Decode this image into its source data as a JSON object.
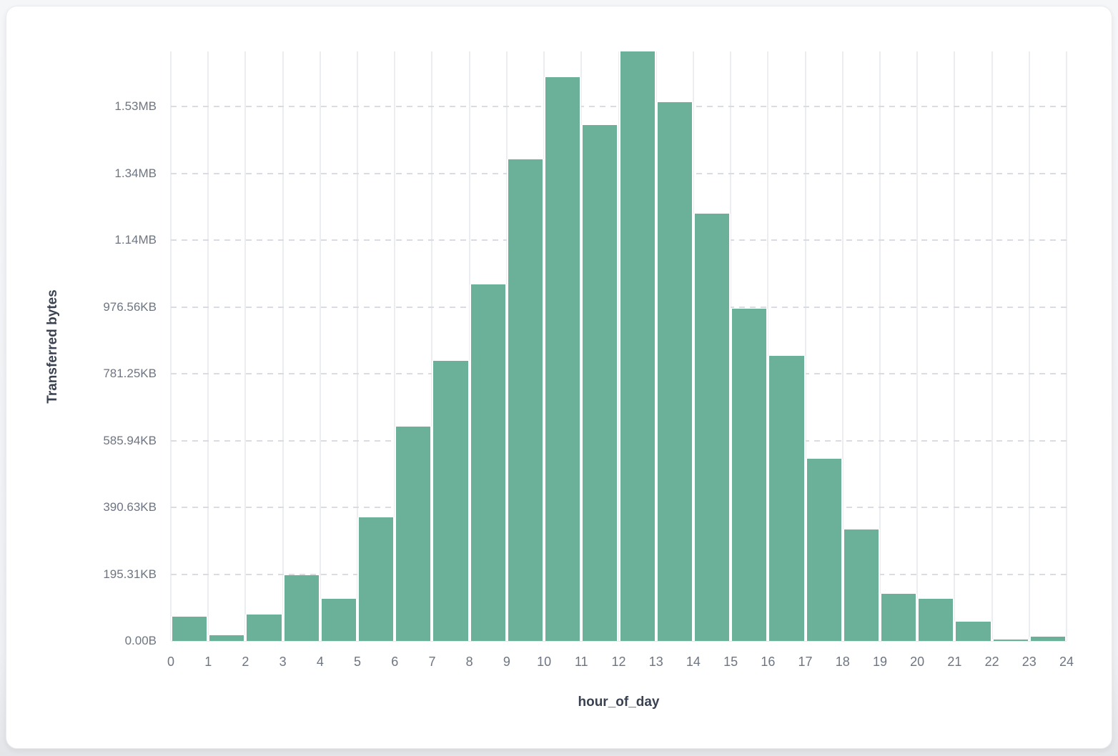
{
  "page": {
    "background_top": "#f5f6f8",
    "background_bottom": "#e3e5e8",
    "card_background": "#ffffff",
    "card_border": "#e9ebef"
  },
  "text_colors": {
    "tick_label": "#6e7582",
    "axis_title": "#3a4150"
  },
  "chart_data": {
    "type": "bar",
    "title": "",
    "xlabel": "hour_of_day",
    "ylabel": "Transferred bytes",
    "bar_color": "#6bb098",
    "grid": {
      "horizontal": "dashed",
      "vertical": "solid",
      "legend": "none"
    },
    "x_ticks": [
      "0",
      "1",
      "2",
      "3",
      "4",
      "5",
      "6",
      "7",
      "8",
      "9",
      "10",
      "11",
      "12",
      "13",
      "14",
      "15",
      "16",
      "17",
      "18",
      "19",
      "20",
      "21",
      "22",
      "23",
      "24"
    ],
    "y_ticks": [
      {
        "label": "0.00B",
        "bytes": 0
      },
      {
        "label": "195.31KB",
        "bytes": 200000
      },
      {
        "label": "390.63KB",
        "bytes": 400000
      },
      {
        "label": "585.94KB",
        "bytes": 600000
      },
      {
        "label": "781.25KB",
        "bytes": 800000
      },
      {
        "label": "976.56KB",
        "bytes": 1000000
      },
      {
        "label": "1.14MB",
        "bytes": 1200000
      },
      {
        "label": "1.34MB",
        "bytes": 1400000
      },
      {
        "label": "1.53MB",
        "bytes": 1600000
      }
    ],
    "categories": [
      0,
      1,
      2,
      3,
      4,
      5,
      6,
      7,
      8,
      9,
      10,
      11,
      12,
      13,
      14,
      15,
      16,
      17,
      18,
      19,
      20,
      21,
      22,
      23
    ],
    "values": [
      73400,
      16500,
      79200,
      196200,
      126900,
      370200,
      642000,
      838200,
      1068500,
      1441700,
      1689100,
      1544400,
      1765500,
      1612900,
      1280400,
      995700,
      854500,
      546300,
      333800,
      140600,
      125600,
      57800,
      4300,
      12800
    ],
    "values_unit": "bytes",
    "xlim": [
      0,
      24
    ],
    "ylim": [
      0,
      1765500
    ]
  }
}
